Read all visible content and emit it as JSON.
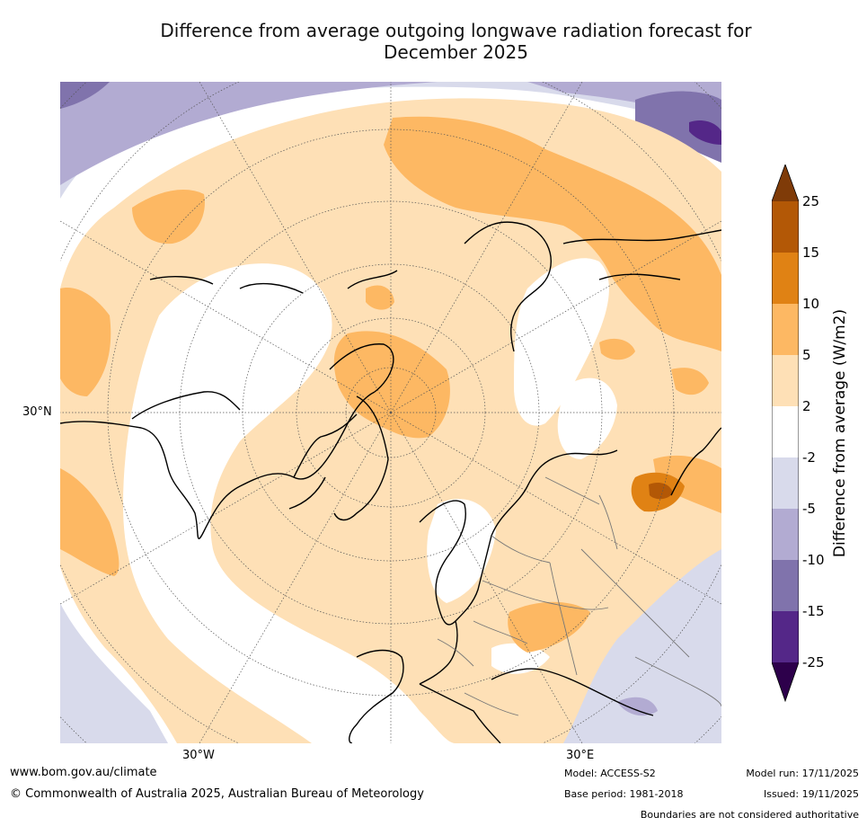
{
  "title_line1": "Difference from average outgoing longwave radiation forecast for",
  "title_line2": "December 2025",
  "map": {
    "lat_label": "30°N",
    "lon_labels": [
      "30°W",
      "30°E"
    ]
  },
  "colorbar": {
    "label": "Difference from average (W/m2)",
    "ticks": [
      "25",
      "15",
      "10",
      "5",
      "2",
      "-2",
      "-5",
      "-10",
      "-15",
      "-25"
    ],
    "colors": {
      "extend_high": "#7f3b08",
      "gt15": "#b35806",
      "10_15": "#e08214",
      "5_10": "#fdb863",
      "2_5": "#fee0b6",
      "neutral": "#ffffff",
      "m5_m2": "#d8daeb",
      "m10_m5": "#b2abd2",
      "m15_m10": "#8073ac",
      "m25_m15": "#542788",
      "extend_low": "#2d004b"
    }
  },
  "footer": {
    "website": "www.bom.gov.au/climate",
    "copyright": "© Commonwealth of Australia 2025, Australian Bureau of Meteorology",
    "model": "Model: ACCESS-S2",
    "base_period": "Base period: 1981-2018",
    "model_run": "Model run: 17/11/2025",
    "issued": "Issued: 19/11/2025",
    "disclaimer": "Boundaries are not considered authoritative"
  }
}
